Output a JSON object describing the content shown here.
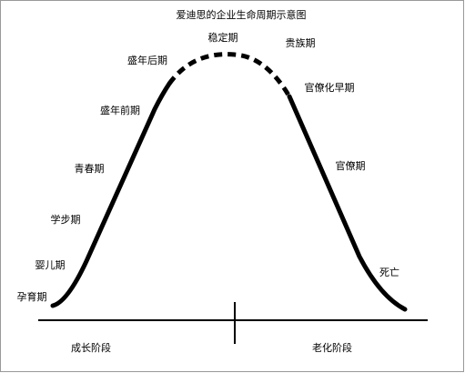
{
  "title": "爱迪思的企业生命周期示意图",
  "stages": [
    "孕育期",
    "婴儿期",
    "学步期",
    "青春期",
    "盛年前期",
    "盛年后期",
    "稳定期",
    "贵族期",
    "官僚化早期",
    "官僚期",
    "死亡"
  ],
  "phases": [
    "成长阶段",
    "老化阶段"
  ]
}
